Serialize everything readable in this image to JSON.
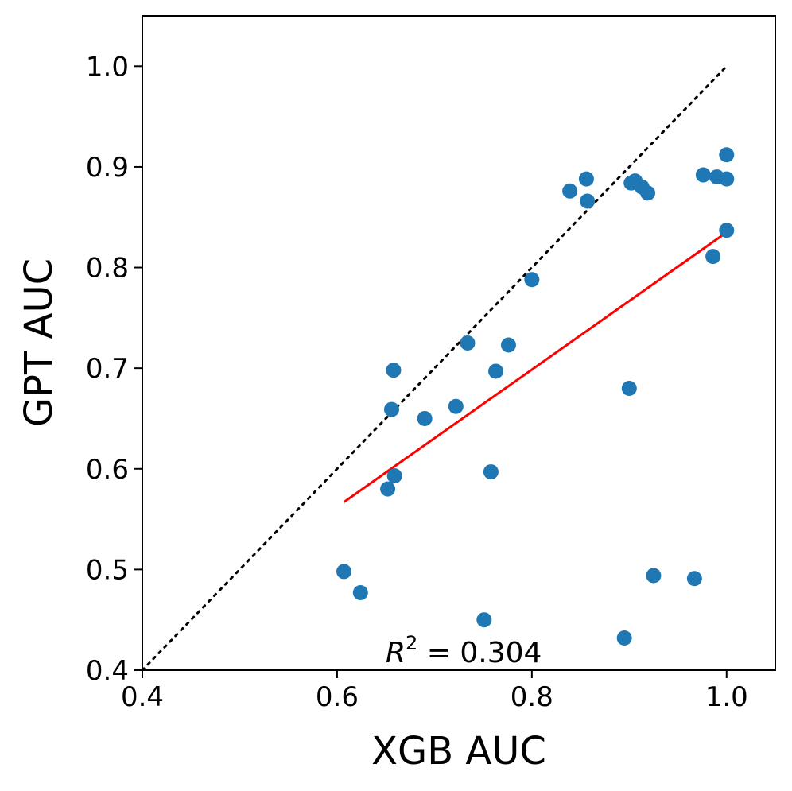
{
  "chart_data": {
    "type": "scatter",
    "xlabel": "XGB AUC",
    "ylabel": "GPT AUC",
    "xlim": [
      0.4,
      1.05
    ],
    "ylim": [
      0.4,
      1.05
    ],
    "xticks": [
      "0.4",
      "0.6",
      "0.8",
      "1.0"
    ],
    "yticks": [
      "0.4",
      "0.5",
      "0.6",
      "0.7",
      "0.8",
      "0.9",
      "1.0"
    ],
    "grid": false,
    "annotation": {
      "prefix": "R",
      "sup": "2",
      "text": " = 0.304"
    },
    "colors": {
      "points": "#1f77b4",
      "fit_line": "#ff0000",
      "identity_line": "#000000"
    },
    "points": [
      {
        "x": 0.607,
        "y": 0.498
      },
      {
        "x": 0.624,
        "y": 0.477
      },
      {
        "x": 0.652,
        "y": 0.58
      },
      {
        "x": 0.656,
        "y": 0.659
      },
      {
        "x": 0.658,
        "y": 0.698
      },
      {
        "x": 0.659,
        "y": 0.593
      },
      {
        "x": 0.69,
        "y": 0.65
      },
      {
        "x": 0.722,
        "y": 0.662
      },
      {
        "x": 0.734,
        "y": 0.725
      },
      {
        "x": 0.751,
        "y": 0.45
      },
      {
        "x": 0.758,
        "y": 0.597
      },
      {
        "x": 0.763,
        "y": 0.697
      },
      {
        "x": 0.776,
        "y": 0.723
      },
      {
        "x": 0.8,
        "y": 0.788
      },
      {
        "x": 0.839,
        "y": 0.876
      },
      {
        "x": 0.856,
        "y": 0.888
      },
      {
        "x": 0.857,
        "y": 0.866
      },
      {
        "x": 0.895,
        "y": 0.432
      },
      {
        "x": 0.9,
        "y": 0.68
      },
      {
        "x": 0.902,
        "y": 0.884
      },
      {
        "x": 0.906,
        "y": 0.886
      },
      {
        "x": 0.913,
        "y": 0.88
      },
      {
        "x": 0.919,
        "y": 0.874
      },
      {
        "x": 0.925,
        "y": 0.494
      },
      {
        "x": 0.967,
        "y": 0.491
      },
      {
        "x": 0.976,
        "y": 0.892
      },
      {
        "x": 0.986,
        "y": 0.811
      },
      {
        "x": 0.99,
        "y": 0.89
      },
      {
        "x": 1.0,
        "y": 0.912
      },
      {
        "x": 1.0,
        "y": 0.888
      },
      {
        "x": 1.0,
        "y": 0.837
      }
    ],
    "fit_line": {
      "x": [
        0.607,
        1.0
      ],
      "y": [
        0.567,
        0.835
      ]
    },
    "identity_line": {
      "x": [
        0.4,
        1.0
      ],
      "y": [
        0.4,
        1.0
      ]
    }
  }
}
